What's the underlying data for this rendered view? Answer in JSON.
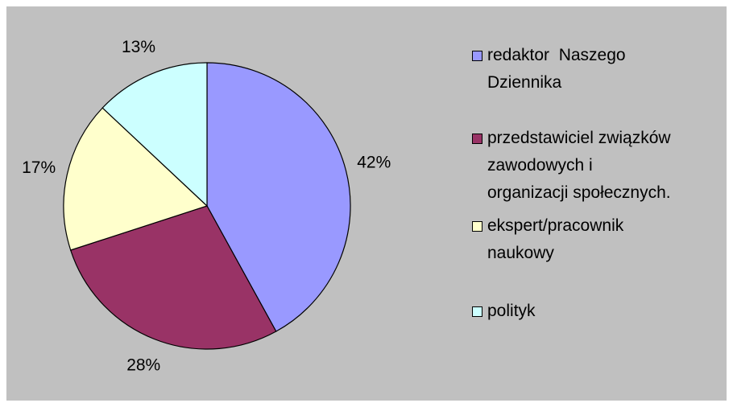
{
  "chart_data": {
    "type": "pie",
    "categories": [
      "redaktor  Naszego\nDziennika",
      "przedstawiciel związków\nzawodowych i\norganizacji społecznych.",
      "ekspert/pracownik\nnaukowy",
      "polityk"
    ],
    "values": [
      42,
      28,
      17,
      13
    ],
    "value_labels": [
      "42%",
      "28%",
      "17%",
      "13%"
    ],
    "colors": [
      "#9999ff",
      "#993366",
      "#ffffcc",
      "#ccffff"
    ],
    "legend": "right"
  }
}
